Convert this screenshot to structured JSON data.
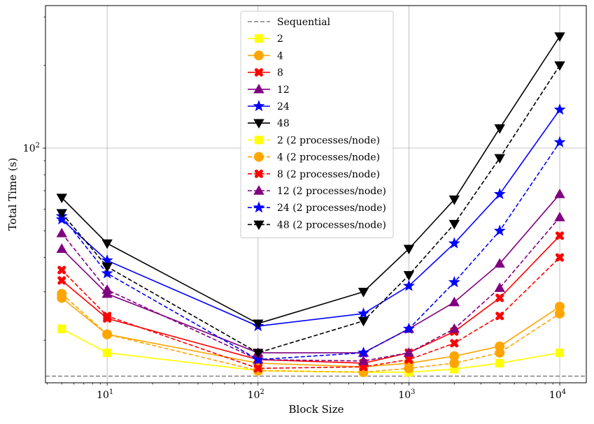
{
  "chart_data": {
    "type": "line",
    "title": "",
    "xlabel": "Block Size",
    "ylabel": "Total Time (s)",
    "x_scale": "log",
    "y_scale": "log",
    "xlim": [
      3.9,
      15000
    ],
    "ylim": [
      14,
      330
    ],
    "grid": true,
    "legend_position": "top-center",
    "x": [
      5,
      10,
      100,
      500,
      1000,
      2000,
      4000,
      10000
    ],
    "x_ticks": [
      {
        "value": 10,
        "base": "10",
        "exp": "1"
      },
      {
        "value": 100,
        "base": "10",
        "exp": "2"
      },
      {
        "value": 1000,
        "base": "10",
        "exp": "3"
      },
      {
        "value": 10000,
        "base": "10",
        "exp": "4"
      }
    ],
    "y_ticks": [
      {
        "value": 100,
        "base": "10",
        "exp": "2"
      }
    ],
    "reference_lines": [
      {
        "name": "Sequential",
        "y": 14.8,
        "color": "#808080",
        "dash": "dashed"
      }
    ],
    "series": [
      {
        "name": "2",
        "color": "#ffff00",
        "marker": "square",
        "dash": "solid",
        "values": [
          22.0,
          18.0,
          15.5,
          15.3,
          15.3,
          15.7,
          16.5,
          18.0
        ]
      },
      {
        "name": "4",
        "color": "#ffa500",
        "marker": "circle",
        "dash": "solid",
        "values": [
          28.5,
          21.0,
          16.5,
          16.0,
          16.5,
          17.5,
          19.0,
          26.5
        ]
      },
      {
        "name": "8",
        "color": "#ff0000",
        "marker": "x",
        "dash": "solid",
        "values": [
          33.0,
          24.0,
          17.0,
          16.5,
          18.0,
          21.5,
          28.5,
          48.0
        ]
      },
      {
        "name": "12",
        "color": "#800080",
        "marker": "triangle-up",
        "dash": "solid",
        "values": [
          43.0,
          29.5,
          18.0,
          18.0,
          22.0,
          27.5,
          38.0,
          68.0
        ]
      },
      {
        "name": "24",
        "color": "#0000ff",
        "marker": "star",
        "dash": "solid",
        "values": [
          55.0,
          39.0,
          22.5,
          25.0,
          31.5,
          45.0,
          68.0,
          138.0
        ]
      },
      {
        "name": "48",
        "color": "#000000",
        "marker": "triangle-down",
        "dash": "solid",
        "values": [
          66.0,
          45.0,
          23.0,
          30.0,
          43.0,
          65.0,
          118.0,
          255.0
        ]
      },
      {
        "name": "2 (2 processes/node)",
        "color": "#ffff00",
        "marker": "square",
        "dash": "dashed",
        "values": [
          22.0,
          18.0,
          15.5,
          15.3,
          15.3,
          15.7,
          16.5,
          18.0
        ]
      },
      {
        "name": "4 (2 processes/node)",
        "color": "#ffa500",
        "marker": "circle",
        "dash": "dashed",
        "values": [
          29.5,
          21.0,
          15.5,
          15.3,
          15.8,
          16.5,
          18.0,
          25.0
        ]
      },
      {
        "name": "8 (2 processes/node)",
        "color": "#ff0000",
        "marker": "x",
        "dash": "dashed",
        "values": [
          36.0,
          24.5,
          15.8,
          16.0,
          17.0,
          19.5,
          24.5,
          40.0
        ]
      },
      {
        "name": "12 (2 processes/node)",
        "color": "#800080",
        "marker": "triangle-up",
        "dash": "dashed",
        "values": [
          49.0,
          30.5,
          17.0,
          16.8,
          18.0,
          22.0,
          31.0,
          56.0
        ]
      },
      {
        "name": "24 (2 processes/node)",
        "color": "#0000ff",
        "marker": "star",
        "dash": "dashed",
        "values": [
          56.5,
          35.0,
          17.0,
          18.0,
          22.0,
          32.5,
          50.0,
          105.0
        ]
      },
      {
        "name": "48 (2 processes/node)",
        "color": "#000000",
        "marker": "triangle-down",
        "dash": "dashed",
        "values": [
          58.0,
          37.0,
          18.0,
          23.5,
          34.5,
          53.0,
          92.0,
          200.0
        ]
      }
    ]
  }
}
